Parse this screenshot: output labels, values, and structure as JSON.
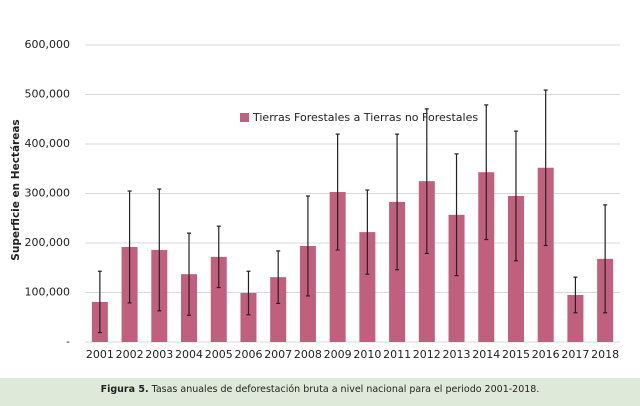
{
  "chart_data": {
    "type": "bar",
    "y_label": "Superficie en Hectáreas",
    "categories": [
      "2001",
      "2002",
      "2003",
      "2004",
      "2005",
      "2006",
      "2007",
      "2008",
      "2009",
      "2010",
      "2011",
      "2012",
      "2013",
      "2014",
      "2015",
      "2016",
      "2017",
      "2018"
    ],
    "series": [
      {
        "name": "Tierras Forestales a Tierras no Forestales",
        "color": "#c0607e",
        "values": [
          81000,
          192000,
          186000,
          137000,
          172000,
          99000,
          131000,
          194000,
          303000,
          222000,
          283000,
          325000,
          257000,
          343000,
          295000,
          352000,
          95000,
          168000
        ],
        "errors": [
          62000,
          113000,
          123000,
          83000,
          62000,
          44000,
          53000,
          101000,
          117000,
          85000,
          137000,
          146000,
          123000,
          136000,
          131000,
          157000,
          36000,
          109000
        ]
      }
    ],
    "ylim": [
      0,
      600000
    ],
    "yticks": [
      {
        "value": 0,
        "label": "-"
      },
      {
        "value": 100000,
        "label": "100,000"
      },
      {
        "value": 200000,
        "label": "200,000"
      },
      {
        "value": 300000,
        "label": "300,000"
      },
      {
        "value": 400000,
        "label": "400,000"
      },
      {
        "value": 500000,
        "label": "500,000"
      },
      {
        "value": 600000,
        "label": "600,000"
      }
    ],
    "grid": true,
    "legend": "top"
  },
  "caption": {
    "label": "Figura 5.",
    "text": " Tasas anuales de deforestación bruta a nivel nacional para el periodo 2001-2018."
  }
}
